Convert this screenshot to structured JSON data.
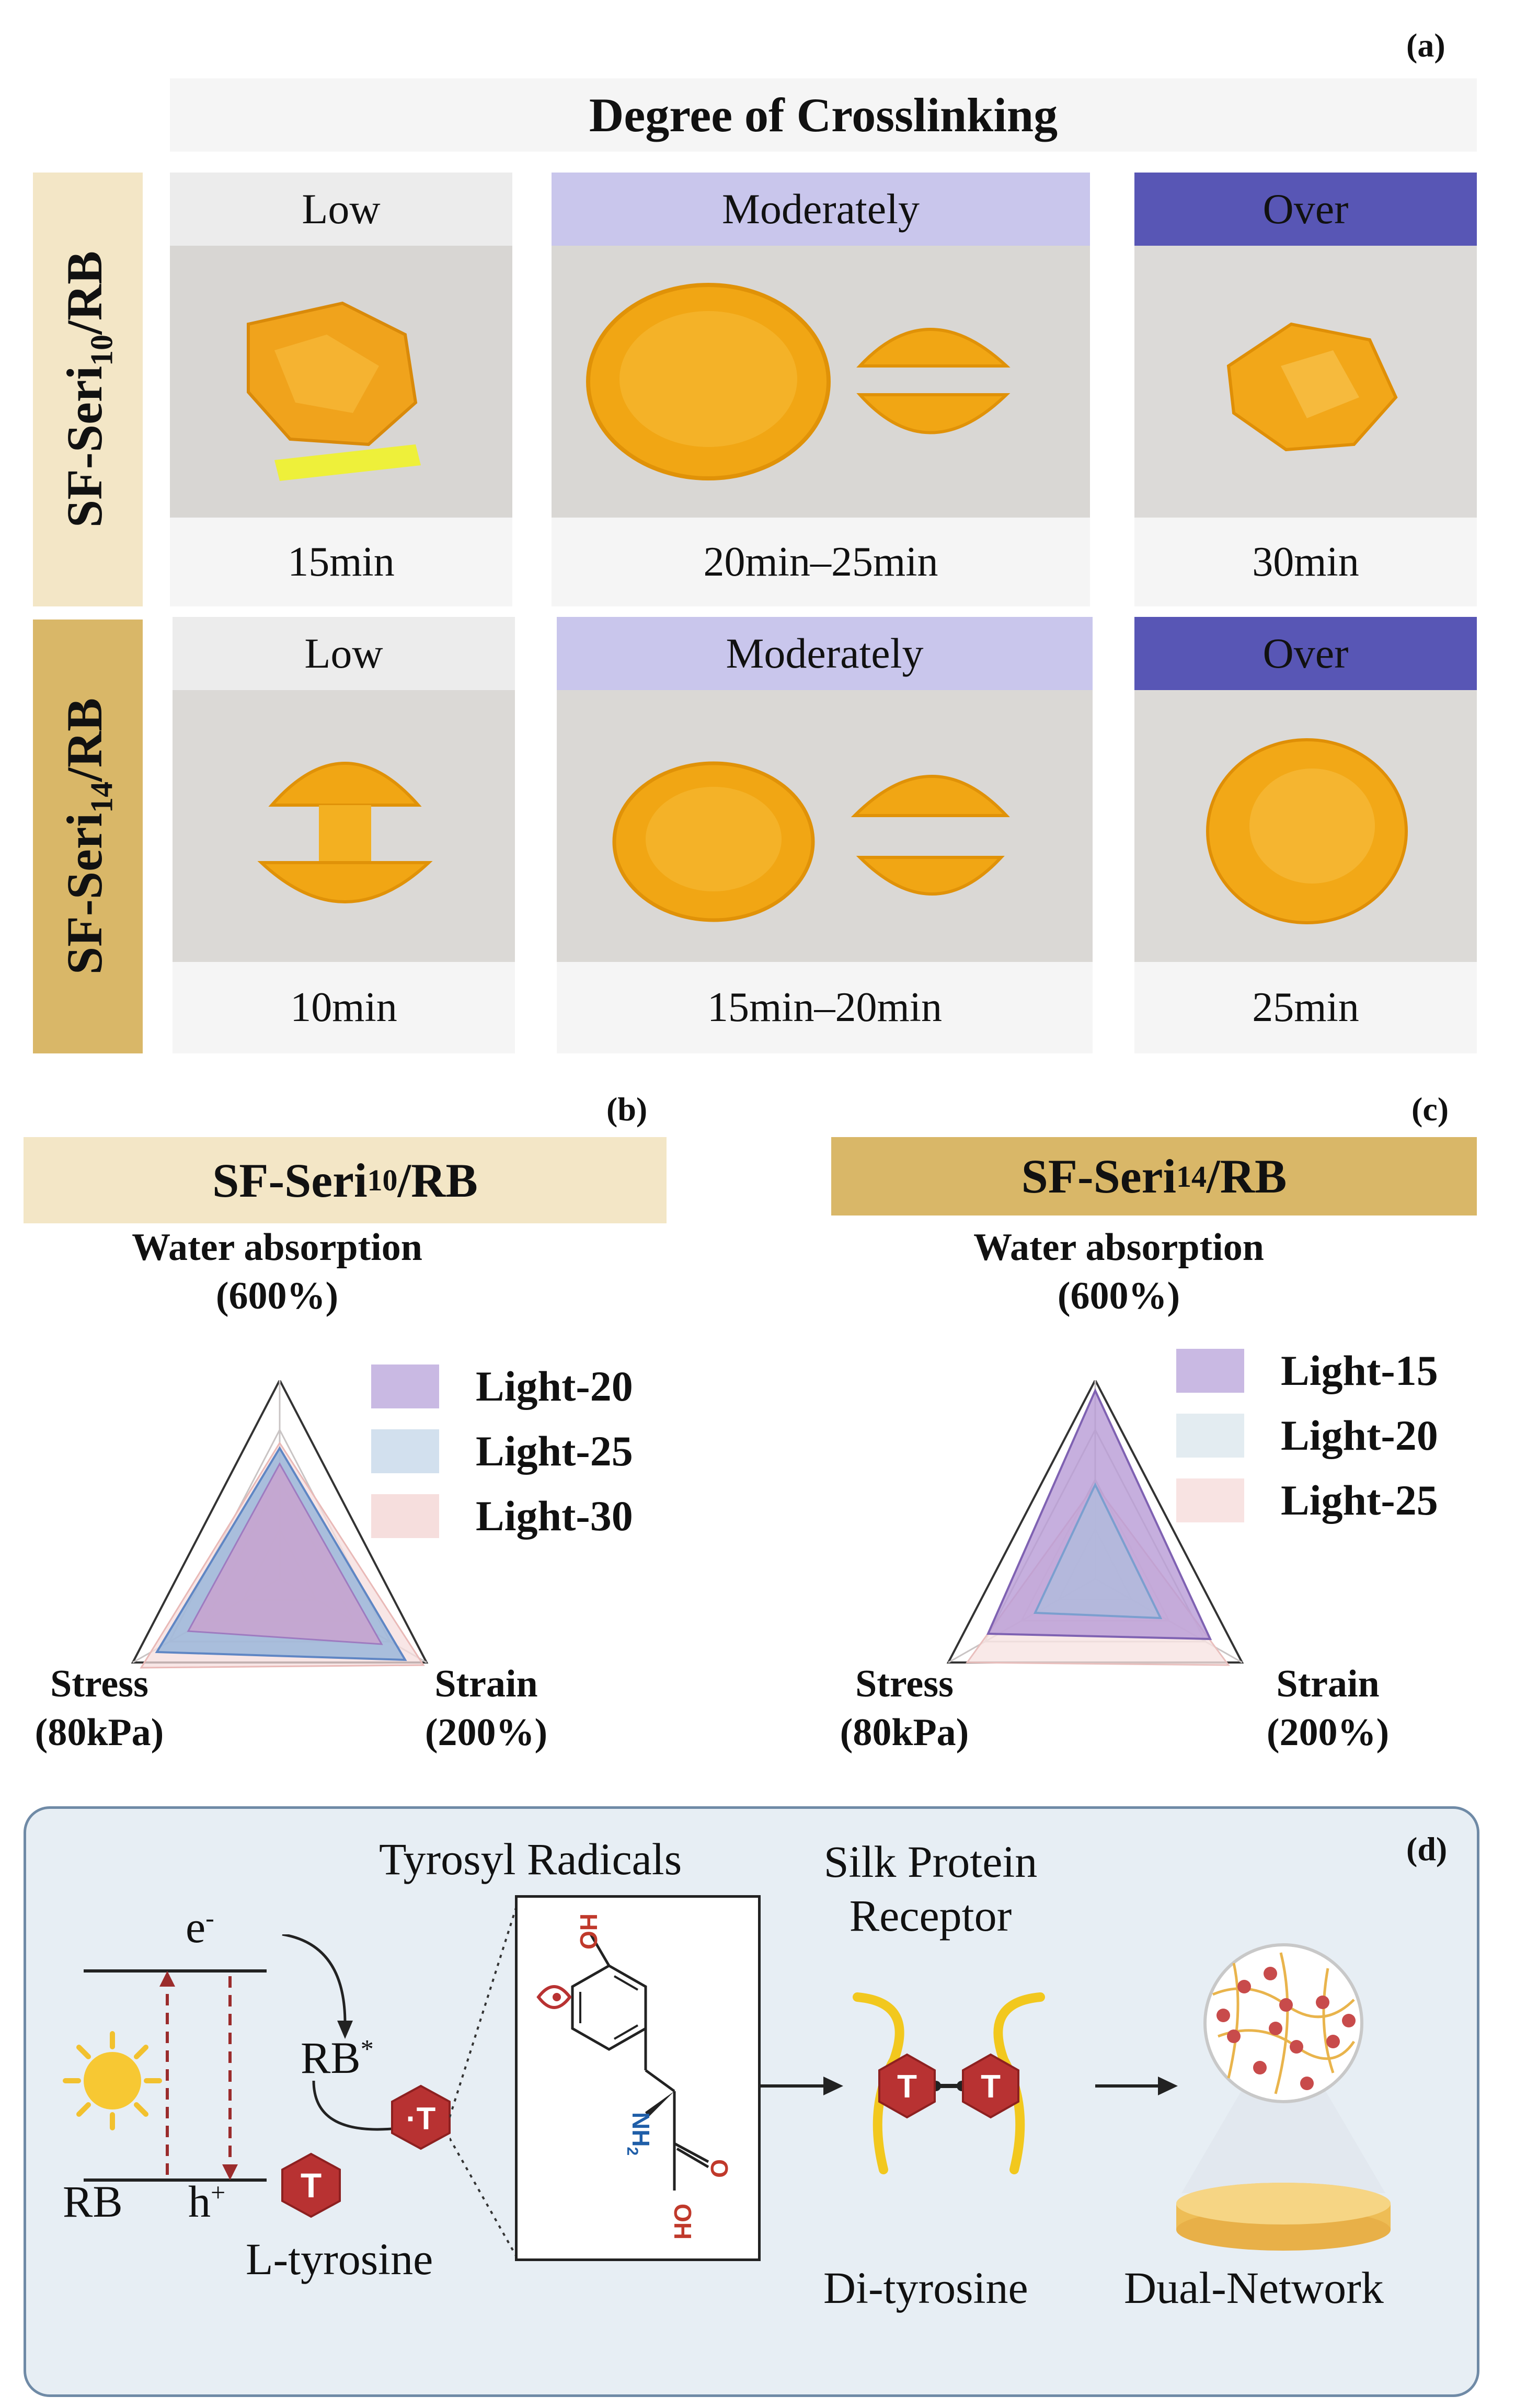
{
  "panel_a": {
    "letter": "(a)",
    "banner": "Degree of Crosslinking",
    "rows": [
      {
        "label_main": "SF-Seri",
        "label_sub": "10",
        "label_tail": "/RB",
        "color": "#f3e6c6",
        "cells": [
          {
            "header": "Low",
            "time": "15min",
            "header_color": "#ececec",
            "header_text_color": "#111111"
          },
          {
            "header": "Moderately",
            "time": "20min–25min",
            "header_color": "#c9c6ec",
            "header_text_color": "#111111"
          },
          {
            "header": "Over",
            "time": "30min",
            "header_color": "#5856b5",
            "header_text_color": "#111111"
          }
        ]
      },
      {
        "label_main": "SF-Seri",
        "label_sub": "14",
        "label_tail": "/RB",
        "color": "#d9b768",
        "cells": [
          {
            "header": "Low",
            "time": "10min",
            "header_color": "#ececec",
            "header_text_color": "#111111"
          },
          {
            "header": "Moderately",
            "time": "15min–20min",
            "header_color": "#c9c6ec",
            "header_text_color": "#111111"
          },
          {
            "header": "Over",
            "time": "25min",
            "header_color": "#5856b5",
            "header_text_color": "#111111"
          }
        ]
      }
    ]
  },
  "panel_b": {
    "letter": "(b)",
    "title_main": "SF-Seri",
    "title_sub": "10",
    "title_tail": "/RB",
    "title_color": "#f3e6c6",
    "axis_top": "Water absorption",
    "axis_top_max": "(600%)",
    "axis_left": "Stress",
    "axis_left_max": "(80kPa)",
    "axis_right": "Strain",
    "axis_right_max": "(200%)",
    "legend": [
      {
        "label": "Light-20",
        "color": "#c9b9e3"
      },
      {
        "label": "Light-25",
        "color": "#d2e0ee"
      },
      {
        "label": "Light-30",
        "color": "#f6dedd"
      }
    ]
  },
  "panel_c": {
    "letter": "(c)",
    "title_main": "SF-Seri",
    "title_sub": "14",
    "title_tail": "/RB",
    "title_color": "#d9b768",
    "axis_top": "Water absorption",
    "axis_top_max": "(600%)",
    "axis_left": "Stress",
    "axis_left_max": "(80kPa)",
    "axis_right": "Strain",
    "axis_right_max": "(200%)",
    "legend": [
      {
        "label": "Light-15",
        "color": "#c9b9e3"
      },
      {
        "label": "Light-20",
        "color": "#e3ecf1"
      },
      {
        "label": "Light-25",
        "color": "#f8e3e2"
      }
    ]
  },
  "panel_d": {
    "letter": "(d)",
    "electron": "e",
    "electron_sup": "-",
    "rb_excited": "RB",
    "rb_excited_sup": "*",
    "rb": "RB",
    "hole": "h",
    "hole_sup": "+",
    "l_tyrosine": "L-tyrosine",
    "tyrosyl": "Tyrosyl Radicals",
    "silk_line1": "Silk Protein",
    "silk_line2": "Receptor",
    "di_tyrosine": "Di-tyrosine",
    "dual_network": "Dual-Network",
    "t_symbol": "T",
    "t_radical": "·T",
    "atom_ho": "HO",
    "atom_nh2": "NH",
    "atom_nh2_sub": "2",
    "atom_o": "O",
    "atom_oh": "OH"
  }
}
